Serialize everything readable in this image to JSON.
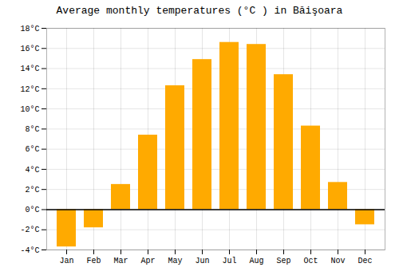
{
  "chart_data": {
    "type": "bar",
    "title": "Average monthly temperatures (°C ) in Băişoara",
    "categories": [
      "Jan",
      "Feb",
      "Mar",
      "Apr",
      "May",
      "Jun",
      "Jul",
      "Aug",
      "Sep",
      "Oct",
      "Nov",
      "Dec"
    ],
    "values": [
      -3.7,
      -1.8,
      2.5,
      7.4,
      12.3,
      14.9,
      16.6,
      16.4,
      13.4,
      8.3,
      2.7,
      -1.5
    ],
    "color": "#FFAA00",
    "ylim": [
      -4,
      18
    ],
    "yticks": [
      {
        "value": -4,
        "label": "-4°C"
      },
      {
        "value": -2,
        "label": "-2°C"
      },
      {
        "value": 0,
        "label": "0°C"
      },
      {
        "value": 2,
        "label": "2°C"
      },
      {
        "value": 4,
        "label": "4°C"
      },
      {
        "value": 6,
        "label": "6°C"
      },
      {
        "value": 8,
        "label": "8°C"
      },
      {
        "value": 10,
        "label": "10°C"
      },
      {
        "value": 12,
        "label": "12°C"
      },
      {
        "value": 14,
        "label": "14°C"
      },
      {
        "value": 16,
        "label": "16°C"
      },
      {
        "value": 18,
        "label": "18°C"
      }
    ],
    "grid": true
  }
}
